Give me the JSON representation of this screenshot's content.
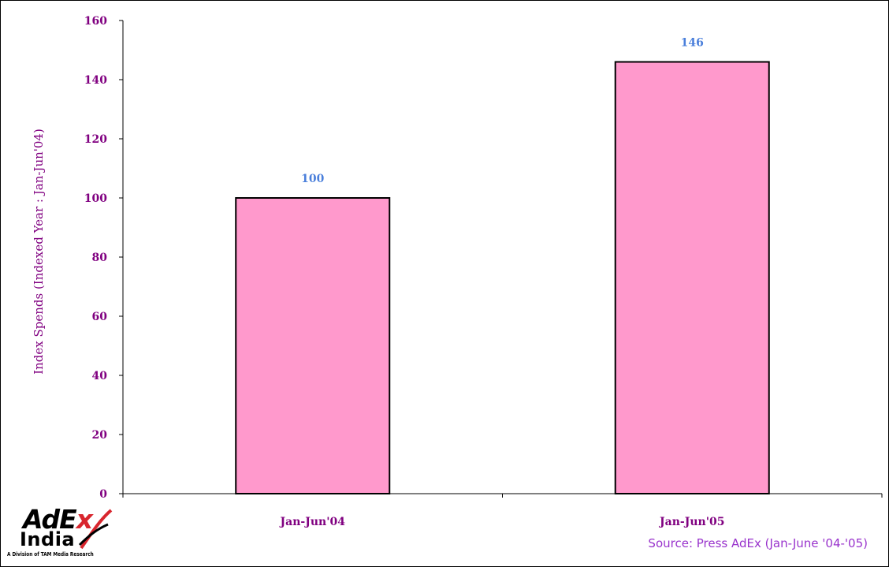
{
  "colors": {
    "bar_fill": "#ff99cc",
    "bar_stroke": "#000000",
    "axis_text": "#800080",
    "data_label": "#4a7fdb",
    "source_text": "#9933cc",
    "logo_x_red": "#d8262e"
  },
  "chart_data": {
    "type": "bar",
    "categories": [
      "Jan-Jun'04",
      "Jan-Jun'05"
    ],
    "values": [
      100,
      146
    ],
    "data_labels": [
      "100",
      "146"
    ],
    "title": "",
    "xlabel": "",
    "ylabel": "Index Spends (Indexed Year : Jan-Jun'04)",
    "ylim": [
      0,
      160
    ],
    "yticks": [
      0,
      20,
      40,
      60,
      80,
      100,
      120,
      140,
      160
    ],
    "grid": false,
    "legend": "none"
  },
  "footer": {
    "source": "Source: Press AdEx (Jan-June '04-'05)"
  },
  "logo": {
    "adex_prefix": "AdE",
    "adex_x": "x",
    "india": "India",
    "tagline": "A Division of TAM Media Research"
  }
}
